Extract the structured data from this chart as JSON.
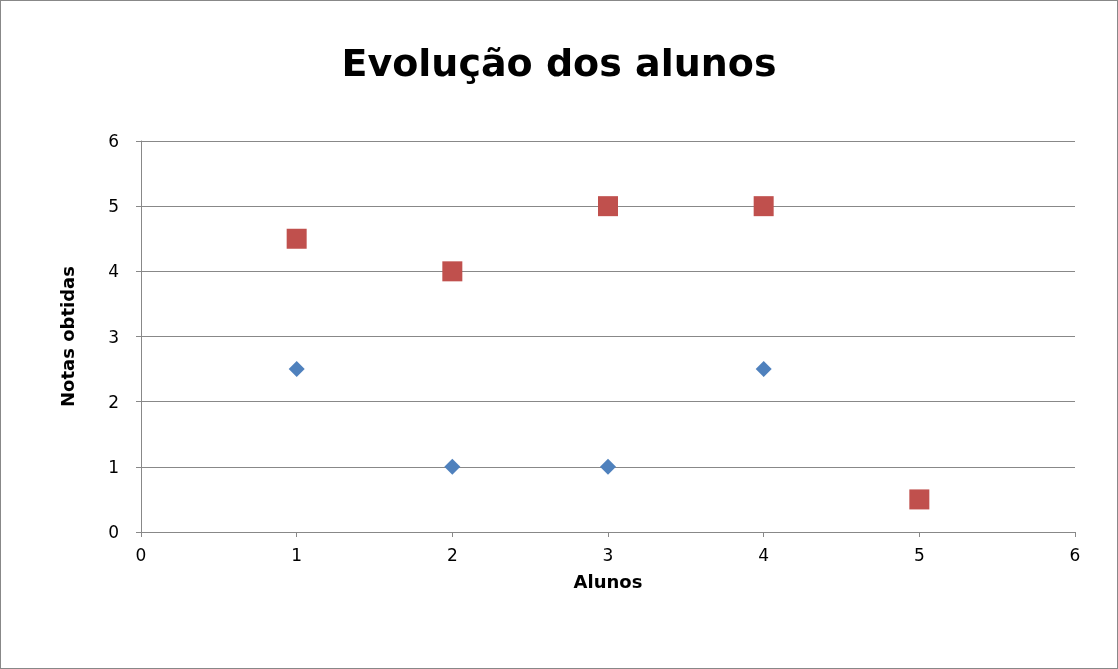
{
  "chart_data": {
    "type": "scatter",
    "title": "Evolução dos alunos",
    "xlabel": "Alunos",
    "ylabel": "Notas obtidas",
    "series": [
      {
        "color": "#4f81bd",
        "marker": "diamond",
        "x": [
          1,
          2,
          3,
          4
        ],
        "values": [
          2.5,
          1,
          1,
          2.5
        ]
      },
      {
        "color": "#c0504d",
        "marker": "square",
        "x": [
          1,
          2,
          3,
          4,
          5
        ],
        "values": [
          4.5,
          4,
          5,
          5,
          0.5
        ]
      }
    ],
    "xlim": [
      0,
      6
    ],
    "xticks": [
      0,
      1,
      2,
      3,
      4,
      5,
      6
    ],
    "ylim": [
      0,
      6
    ],
    "yticks": [
      0,
      1,
      2,
      3,
      4,
      5,
      6
    ],
    "grid": "y"
  }
}
